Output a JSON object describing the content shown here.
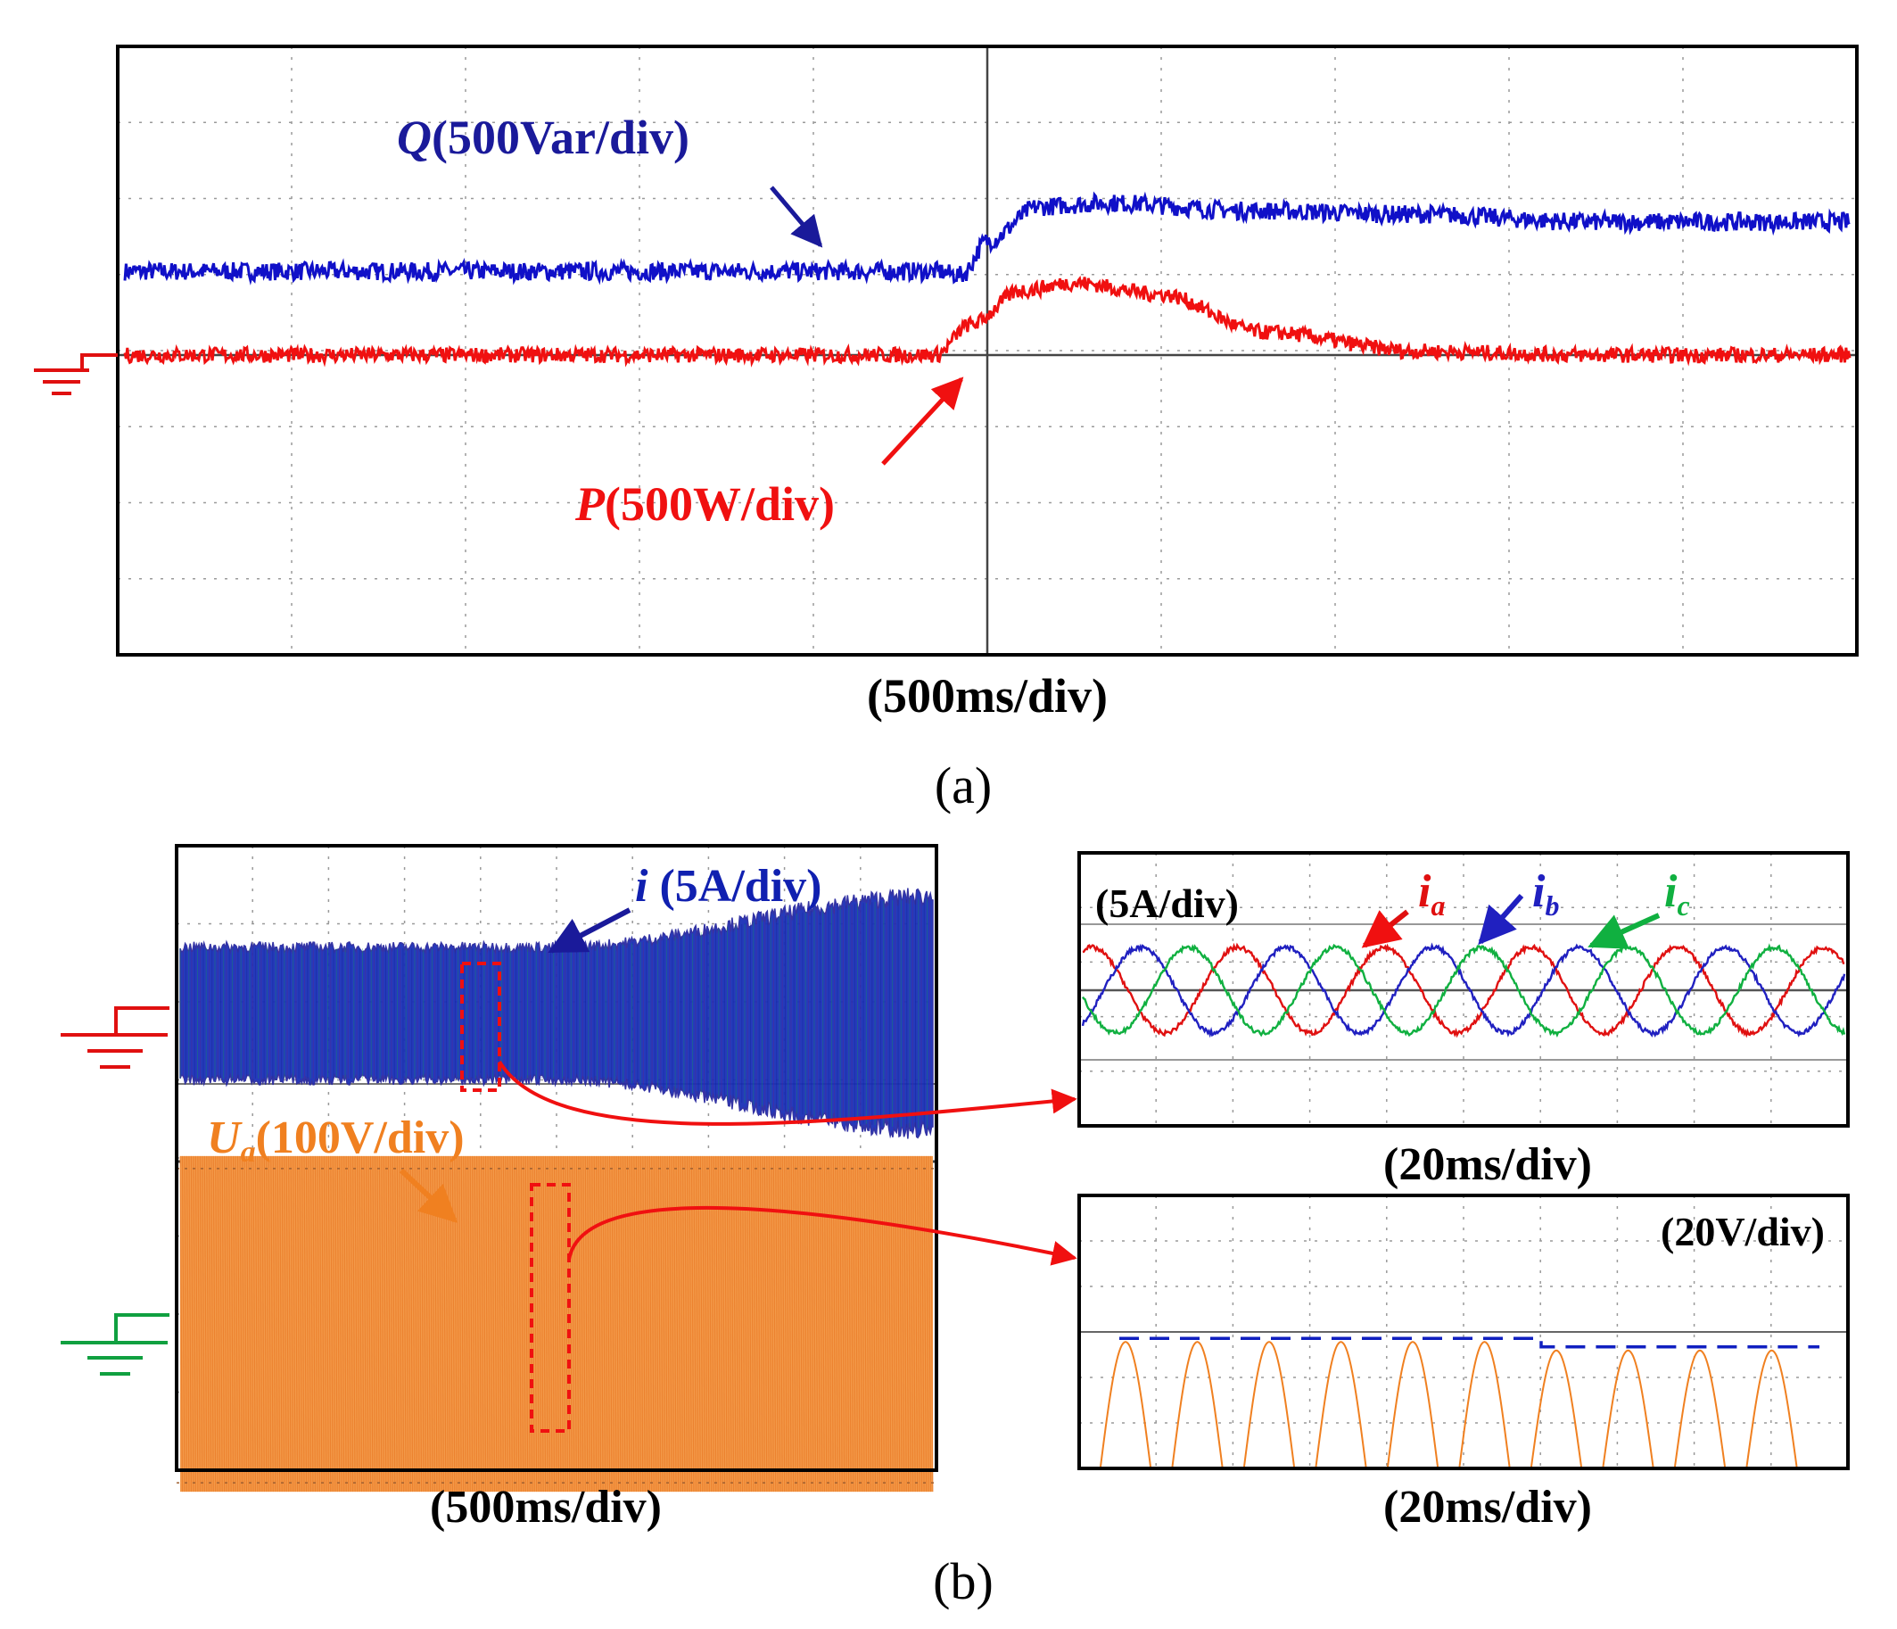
{
  "chart_data": [
    {
      "panel": "(a)",
      "type": "line",
      "time_scale": "(500ms/div)",
      "divisions": {
        "x": 10,
        "y": 8
      },
      "series": [
        {
          "name": "Q",
          "label_symbol": "Q",
          "label_unit": "(500Var/div)",
          "color": "#1010c8",
          "x_div": [
            0,
            4.7,
            4.85,
            5.0,
            5.3,
            5.7,
            6.5,
            7.5,
            8.5,
            10
          ],
          "level_div": [
            1.1,
            1.1,
            1.05,
            1.5,
            1.95,
            2.0,
            1.9,
            1.85,
            1.75,
            1.75
          ],
          "noise": 0.12
        },
        {
          "name": "P",
          "label_symbol": "P",
          "label_unit": "(500W/div)",
          "color": "#f01010",
          "x_div": [
            0,
            4.7,
            4.9,
            5.2,
            5.5,
            6.0,
            6.6,
            7.5,
            8.5,
            10
          ],
          "level_div": [
            0,
            0,
            0.4,
            0.85,
            0.95,
            0.8,
            0.3,
            0.05,
            0,
            0
          ],
          "noise": 0.1
        }
      ]
    },
    {
      "panel": "(b) left",
      "type": "line",
      "time_scale": "(500ms/div)",
      "series": [
        {
          "name": "i",
          "label_symbol": "i",
          "label_unit": " (5A/div)",
          "color": "#1020b0",
          "x_div": [
            0,
            5.0,
            10
          ],
          "envelope_div": [
            0.85,
            0.85,
            1.5
          ]
        },
        {
          "name": "Ua",
          "label_symbol": "U",
          "label_subscript": "a",
          "label_unit": "(100V/div)",
          "color": "#f08020",
          "x_div": [
            0,
            10
          ],
          "envelope_div": [
            2.15,
            2.15
          ]
        }
      ]
    },
    {
      "panel": "(b) right top",
      "type": "line",
      "time_scale": "(20ms/div)",
      "scale_label": "(5A/div)",
      "series": [
        {
          "name": "ia",
          "label_symbol": "i",
          "label_subscript": "a",
          "color": "#e01010",
          "phase_deg": 0
        },
        {
          "name": "ib",
          "label_symbol": "i",
          "label_subscript": "b",
          "color": "#2020c0",
          "phase_deg": -120
        },
        {
          "name": "ic",
          "label_symbol": "i",
          "label_subscript": "c",
          "color": "#10b040",
          "phase_deg": 120
        }
      ],
      "amplitude_div": 1.0,
      "cycles": 5.2
    },
    {
      "panel": "(b) right bottom",
      "type": "line",
      "time_scale": "(20ms/div)",
      "scale_label": "(20V/div)",
      "series": [
        {
          "name": "Ua peaks",
          "color": "#f08020",
          "peaks": 10
        },
        {
          "name": "peak level",
          "color": "#1020c0",
          "style": "dashed",
          "level_before_div": 3.0,
          "level_after_div": 2.8
        }
      ]
    }
  ],
  "labels": {
    "a_caption": "(a)",
    "b_caption": "(b)",
    "a_time": "(500ms/div)",
    "b_left_time": "(500ms/div)",
    "b_right_top_time": "(20ms/div)",
    "b_right_bottom_time": "(20ms/div)"
  }
}
